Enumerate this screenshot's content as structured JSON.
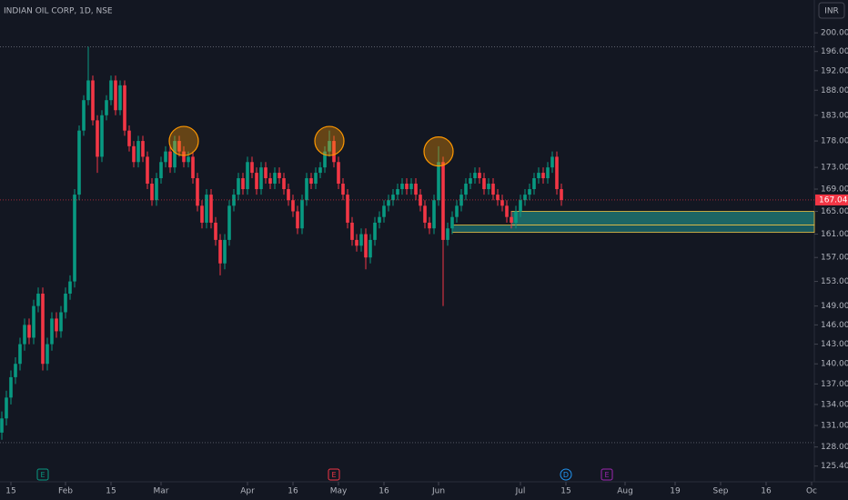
{
  "chart_data": {
    "type": "candlestick",
    "title": "INDIAN OIL CORP, 1D, NSE",
    "currency": "INR",
    "up_color": "#089981",
    "down_color": "#f23645",
    "log_scale": true,
    "ylim": [
      124.5,
      207.2
    ],
    "yticks": [
      {
        "value": 200,
        "label": "200.00"
      },
      {
        "value": 196,
        "label": "196.00"
      },
      {
        "value": 192,
        "label": "192.00"
      },
      {
        "value": 188,
        "label": "188.00"
      },
      {
        "value": 183,
        "label": "183.00"
      },
      {
        "value": 178,
        "label": "178.00"
      },
      {
        "value": 173,
        "label": "173.00"
      },
      {
        "value": 169,
        "label": "169.00"
      },
      {
        "value": 165,
        "label": "165.00"
      },
      {
        "value": 161,
        "label": "161.00"
      },
      {
        "value": 157,
        "label": "157.00"
      },
      {
        "value": 153,
        "label": "153.00"
      },
      {
        "value": 149,
        "label": "149.00"
      },
      {
        "value": 146,
        "label": "146.00"
      },
      {
        "value": 143,
        "label": "143.00"
      },
      {
        "value": 140,
        "label": "140.00"
      },
      {
        "value": 137,
        "label": "137.00"
      },
      {
        "value": 134,
        "label": "134.00"
      },
      {
        "value": 131,
        "label": "131.00"
      },
      {
        "value": 128,
        "label": "128.00"
      },
      {
        "value": 125.4,
        "label": "125.40"
      }
    ],
    "xlim": [
      -0.4,
      178.6
    ],
    "xticks": [
      {
        "value": 2,
        "label": "15"
      },
      {
        "value": 14,
        "label": "Feb"
      },
      {
        "value": 24,
        "label": "15"
      },
      {
        "value": 35,
        "label": "Mar"
      },
      {
        "value": 54,
        "label": "Apr"
      },
      {
        "value": 64,
        "label": "16"
      },
      {
        "value": 74,
        "label": "May"
      },
      {
        "value": 84,
        "label": "16"
      },
      {
        "value": 96,
        "label": "Jun"
      },
      {
        "value": 114,
        "label": "Jul"
      },
      {
        "value": 124,
        "label": "15"
      },
      {
        "value": 137,
        "label": "Aug"
      },
      {
        "value": 148,
        "label": "19"
      },
      {
        "value": 158,
        "label": "Sep"
      },
      {
        "value": 168,
        "label": "16"
      },
      {
        "value": 178,
        "label": "Oc"
      }
    ],
    "open": [
      130,
      132,
      135,
      138,
      140,
      143,
      146,
      144,
      149,
      151,
      140,
      143,
      147,
      145,
      148,
      151,
      153,
      168,
      180,
      186,
      190,
      182,
      175,
      183,
      186,
      190,
      184,
      189,
      180,
      177,
      174,
      178,
      175,
      170,
      167,
      171,
      174,
      176,
      173,
      178,
      176,
      174,
      175,
      171,
      166,
      163,
      168,
      163,
      160,
      156,
      160,
      166,
      168,
      171,
      169,
      174,
      172,
      169,
      173,
      171,
      170,
      172,
      171,
      169,
      167,
      165,
      162,
      167,
      171,
      170,
      172,
      173,
      176,
      178,
      174,
      170,
      168,
      163,
      160,
      159,
      161,
      157,
      160,
      163,
      164,
      166,
      167,
      168,
      169,
      170,
      169,
      170,
      168,
      166,
      163,
      162,
      167,
      174,
      160,
      162,
      164,
      166,
      168,
      170,
      171,
      172,
      171,
      169,
      170,
      168,
      167,
      166,
      164,
      163,
      165,
      167,
      168,
      169,
      171,
      172,
      171,
      173,
      175,
      169
    ],
    "high": [
      133,
      136,
      139,
      141,
      144,
      147,
      147,
      150,
      152,
      152,
      144,
      148,
      148,
      149,
      152,
      154,
      169,
      181,
      187,
      197,
      191,
      183,
      184,
      187,
      191,
      191,
      190,
      190,
      181,
      178,
      179,
      179,
      176,
      171,
      172,
      175,
      177,
      177,
      179,
      179,
      177,
      176,
      176,
      172,
      167,
      169,
      169,
      164,
      161,
      161,
      167,
      169,
      172,
      172,
      175,
      175,
      173,
      174,
      174,
      172,
      173,
      173,
      172,
      170,
      168,
      166,
      168,
      172,
      172,
      173,
      174,
      177,
      180,
      179,
      175,
      171,
      169,
      164,
      161,
      162,
      162,
      161,
      164,
      165,
      167,
      168,
      169,
      170,
      171,
      171,
      171,
      171,
      169,
      167,
      164,
      168,
      177,
      175,
      163,
      165,
      167,
      169,
      171,
      172,
      173,
      173,
      172,
      171,
      171,
      169,
      168,
      167,
      165,
      166,
      168,
      169,
      170,
      172,
      173,
      173,
      174,
      176,
      176,
      170
    ],
    "low": [
      129,
      131,
      134,
      137,
      139,
      142,
      143,
      143,
      148,
      139,
      139,
      142,
      144,
      144,
      147,
      150,
      152,
      167,
      179,
      185,
      181,
      172,
      174,
      182,
      185,
      183,
      183,
      179,
      176,
      173,
      173,
      174,
      169,
      166,
      166,
      170,
      173,
      172,
      172,
      175,
      173,
      173,
      170,
      165,
      162,
      162,
      162,
      159,
      154,
      155,
      159,
      165,
      167,
      168,
      168,
      171,
      168,
      168,
      170,
      169,
      169,
      170,
      168,
      166,
      164,
      161,
      161,
      166,
      169,
      169,
      171,
      172,
      175,
      173,
      169,
      167,
      162,
      159,
      158,
      158,
      155,
      156,
      159,
      162,
      163,
      165,
      166,
      167,
      168,
      168,
      168,
      167,
      165,
      162,
      161,
      161,
      166,
      149,
      159,
      161,
      163,
      165,
      167,
      169,
      170,
      170,
      168,
      168,
      167,
      166,
      165,
      163,
      162,
      162,
      164,
      166,
      167,
      168,
      170,
      170,
      170,
      172,
      168,
      166
    ],
    "close": [
      132,
      135,
      138,
      140,
      143,
      146,
      144,
      149,
      151,
      140,
      143,
      147,
      145,
      148,
      151,
      153,
      168,
      180,
      186,
      190,
      182,
      175,
      183,
      186,
      190,
      184,
      189,
      180,
      177,
      174,
      178,
      175,
      170,
      167,
      171,
      174,
      176,
      173,
      178,
      176,
      174,
      175,
      171,
      166,
      163,
      168,
      163,
      160,
      156,
      160,
      166,
      168,
      171,
      169,
      174,
      172,
      169,
      173,
      171,
      170,
      172,
      171,
      169,
      167,
      165,
      162,
      167,
      171,
      170,
      172,
      173,
      176,
      178,
      174,
      170,
      168,
      163,
      160,
      159,
      161,
      157,
      160,
      163,
      164,
      166,
      167,
      168,
      169,
      170,
      169,
      170,
      168,
      166,
      163,
      162,
      167,
      174,
      160,
      162,
      164,
      166,
      168,
      170,
      171,
      172,
      171,
      169,
      170,
      168,
      167,
      166,
      164,
      163,
      165,
      167,
      168,
      169,
      171,
      172,
      171,
      173,
      175,
      169,
      167.04
    ],
    "range_lines": [
      197,
      128.6
    ],
    "zones": [
      {
        "top": 165,
        "bottom": 162.6,
        "start": 112,
        "color": "#26a69a"
      },
      {
        "top": 162.6,
        "bottom": 161.3,
        "start": 99,
        "color": "#1e8f8f"
      }
    ],
    "highlights": [
      {
        "index": 40,
        "price": 178
      },
      {
        "index": 72,
        "price": 178
      },
      {
        "index": 96,
        "price": 176
      }
    ],
    "events": [
      {
        "label": "E",
        "index": 9,
        "color": "#089981"
      },
      {
        "label": "E",
        "index": 73,
        "color": "#f23645"
      },
      {
        "label": "D",
        "index": 124,
        "color": "#2196f3"
      },
      {
        "label": "E",
        "index": 133,
        "color": "#9c27b0"
      }
    ]
  }
}
